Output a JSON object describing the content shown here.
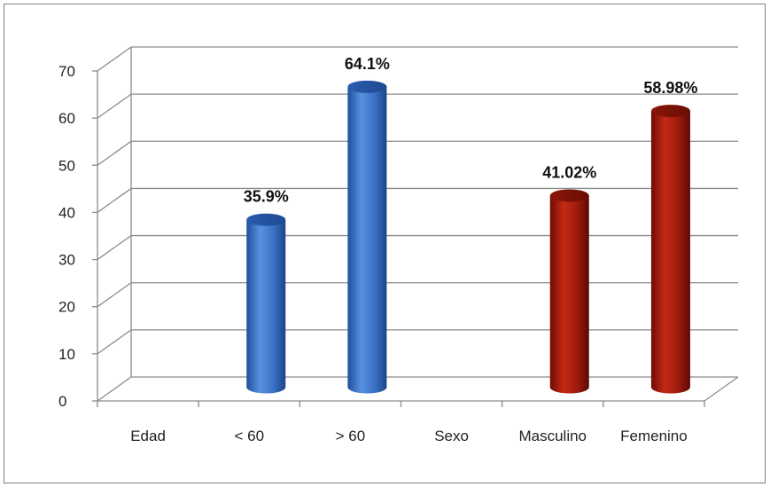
{
  "chart_data": {
    "type": "bar",
    "categories": [
      "Edad",
      "< 60",
      "> 60",
      "Sexo",
      "Masculino",
      "Femenino"
    ],
    "values": [
      null,
      35.9,
      64.1,
      null,
      41.02,
      58.98
    ],
    "data_labels": [
      "",
      "35.9%",
      "64.1%",
      "",
      "41.02%",
      "58.98%"
    ],
    "bar_colors": [
      "",
      "#3f76c8",
      "#3f76c8",
      "",
      "#a51a0c",
      "#a51a0c"
    ],
    "y_ticks": [
      "0",
      "10",
      "20",
      "30",
      "40",
      "50",
      "60",
      "70"
    ],
    "ylim": [
      0,
      70
    ],
    "grid": true,
    "style": "3d-cylinder",
    "legend": "none"
  }
}
